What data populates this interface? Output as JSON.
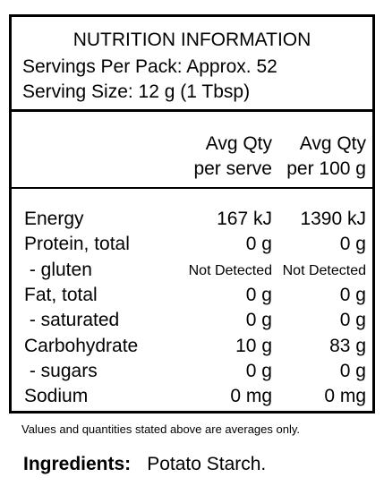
{
  "header": {
    "title": "NUTRITION INFORMATION",
    "servings": "Servings Per Pack: Approx. 52",
    "serving_size": "Serving Size: 12 g (1 Tbsp)"
  },
  "columns": {
    "per_serve": [
      "Avg Qty",
      "per serve"
    ],
    "per_100g": [
      "Avg Qty",
      "per 100 g"
    ]
  },
  "rows": [
    {
      "label": "Energy",
      "serve": "167 kJ",
      "per100": "1390 kJ"
    },
    {
      "label": "Protein, total",
      "serve": "0 g",
      "per100": "0 g"
    },
    {
      "label": " - gluten",
      "serve": "Not Detected",
      "per100": "Not Detected"
    },
    {
      "label": "Fat, total",
      "serve": "0 g",
      "per100": "0 g"
    },
    {
      "label": " - saturated",
      "serve": "0 g",
      "per100": "0 g"
    },
    {
      "label": "Carbohydrate",
      "serve": "10 g",
      "per100": "83 g"
    },
    {
      "label": " - sugars",
      "serve": "0 g",
      "per100": "0 g"
    },
    {
      "label": "Sodium",
      "serve": "0 mg",
      "per100": "0 mg"
    }
  ],
  "footnote": "Values and quantities stated above are averages only.",
  "ingredients": {
    "label": "Ingredients:",
    "value": "Potato Starch."
  }
}
